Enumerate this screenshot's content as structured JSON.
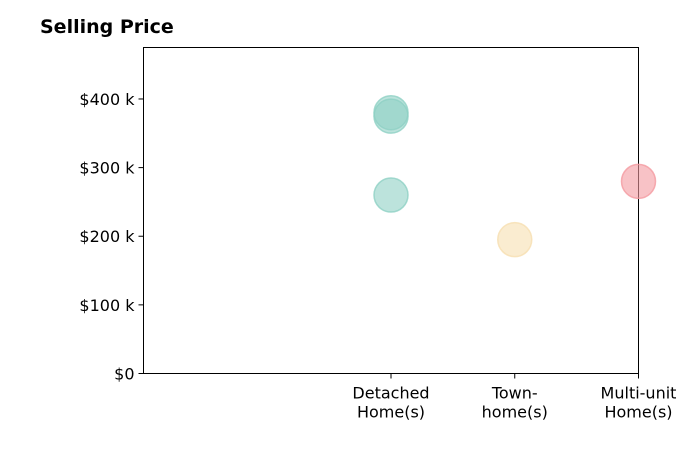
{
  "chart_data": {
    "type": "scatter",
    "title": "Selling Price",
    "xlabel": "",
    "ylabel": "",
    "categories": [
      [
        "Detached",
        "Home(s)"
      ],
      [
        "Town-",
        "home(s)"
      ],
      [
        "Multi-unit",
        "Home(s)"
      ]
    ],
    "xlim": [
      0,
      4
    ],
    "ylim": [
      0,
      475000
    ],
    "yticks": [
      {
        "value": 0,
        "label": "$0"
      },
      {
        "value": 100000,
        "label": "$100 k"
      },
      {
        "value": 200000,
        "label": "$200 k"
      },
      {
        "value": 300000,
        "label": "$300 k"
      },
      {
        "value": 400000,
        "label": "$400 k"
      }
    ],
    "grid": false,
    "points": [
      {
        "category": 0,
        "value": 380000,
        "color": "#8fd1c4"
      },
      {
        "category": 0,
        "value": 375000,
        "color": "#8fd1c4"
      },
      {
        "category": 0,
        "value": 260000,
        "color": "#8fd1c4"
      },
      {
        "category": 1,
        "value": 195000,
        "color": "#f6dfb0"
      },
      {
        "category": 2,
        "value": 280000,
        "color": "#f49aa0"
      }
    ]
  }
}
